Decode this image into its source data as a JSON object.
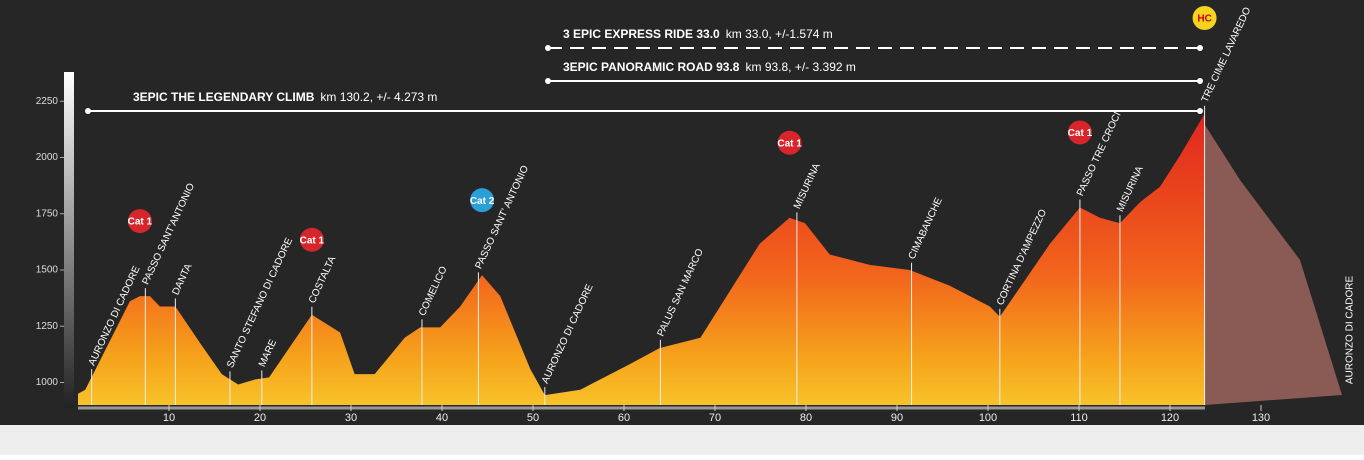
{
  "chart_data": {
    "type": "area",
    "x": [
      0,
      0.8,
      5.7,
      6.8,
      7.9,
      9,
      10.7,
      13.4,
      15.8,
      17.6,
      19.5,
      21,
      25.7,
      28.8,
      30.4,
      32.6,
      35.9,
      37.6,
      39.8,
      42,
      44.4,
      46.4,
      49.7,
      51.3,
      55.2,
      60.7,
      63.9,
      68.4,
      74.9,
      78.2,
      79.9,
      82.6,
      87,
      91.4,
      95.8,
      100.2,
      101.3,
      106.8,
      110.1,
      112.3,
      114.5,
      116.7,
      118.9,
      121.1,
      123.8
    ],
    "values": [
      950,
      968,
      1361,
      1384,
      1384,
      1338,
      1338,
      1176,
      1037,
      991,
      1014,
      1023,
      1301,
      1222,
      1037,
      1037,
      1199,
      1245,
      1245,
      1338,
      1477,
      1384,
      1060,
      944,
      968,
      1083,
      1153,
      1199,
      1616,
      1732,
      1708,
      1569,
      1523,
      1500,
      1430,
      1338,
      1292,
      1616,
      1778,
      1732,
      1708,
      1801,
      1870,
      2009,
      2194
    ],
    "xlim": [
      0,
      130
    ],
    "ylim": [
      900,
      2300
    ],
    "xticks": [
      10,
      20,
      30,
      40,
      50,
      60,
      70,
      80,
      90,
      100,
      110,
      120,
      130
    ],
    "yticks": [
      1000,
      1250,
      1500,
      1750,
      2000,
      2250
    ],
    "routes": [
      {
        "name": "3 EPIC EXPRESS RIDE 33.0",
        "detail": "km 33.0, +/-1.574 m"
      },
      {
        "name": "3EPIC PANORAMIC ROAD 93.8",
        "detail": "km 93.8, +/- 3.392 m"
      },
      {
        "name": "3EPIC THE LEGENDARY CLIMB",
        "detail": "km 130.2, +/- 4.273 m"
      }
    ],
    "waypoints": [
      {
        "name": "AURONZO DI CADORE",
        "km": 1.5
      },
      {
        "name": "PASSO SANT'ANTONIO",
        "km": 7.4
      },
      {
        "name": "DANTA",
        "km": 10.7
      },
      {
        "name": "SANTO STEFANO DI CADORE",
        "km": 16.7
      },
      {
        "name": "MARE",
        "km": 20.2
      },
      {
        "name": "COSTALTA",
        "km": 25.7
      },
      {
        "name": "COMELICO",
        "km": 37.8
      },
      {
        "name": "PASSO SANT' ANTONIO",
        "km": 44
      },
      {
        "name": "AURONZO DI CADORE",
        "km": 51.3
      },
      {
        "name": "PALUS SAN MARCO",
        "km": 64
      },
      {
        "name": "MISURINA",
        "km": 79
      },
      {
        "name": "CIMABANCHE",
        "km": 91.6
      },
      {
        "name": "CORTINA D'AMPEZZO",
        "km": 101.3
      },
      {
        "name": "PASSO TRE CROCI",
        "km": 110.1
      },
      {
        "name": "MISURINA",
        "km": 114.5
      },
      {
        "name": "TRE CIME LAVAREDO",
        "km": 123.8
      }
    ],
    "climbs": [
      {
        "label": "Cat 1",
        "km": 6.8,
        "color": "#d7262b"
      },
      {
        "label": "Cat 1",
        "km": 25.7,
        "color": "#d7262b"
      },
      {
        "label": "Cat 2",
        "km": 44.4,
        "color": "#2a9fd8"
      },
      {
        "label": "Cat 1",
        "km": 78.2,
        "color": "#d7262b"
      },
      {
        "label": "Cat 1",
        "km": 110.1,
        "color": "#d7262b"
      },
      {
        "label": "HC",
        "km": 123.8,
        "color": "#f5d320"
      }
    ],
    "end_label": "AURONZO DI CADORE"
  }
}
